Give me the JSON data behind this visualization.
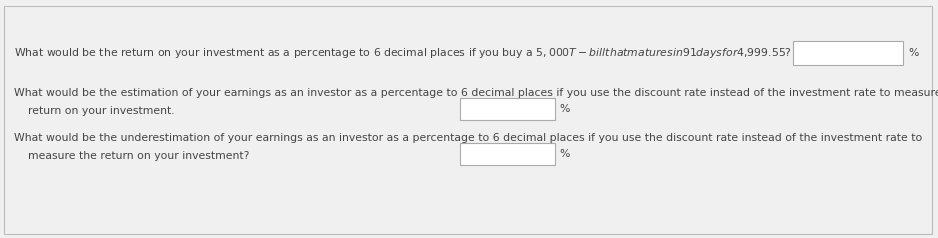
{
  "background_color": "#f0f0f0",
  "border_color": "#bbbbbb",
  "text_color": "#444444",
  "box_color": "#ffffff",
  "box_border_color": "#aaaaaa",
  "font_size": 7.8,
  "line1": "What would be the return on your investment as a percentage to 6 decimal places if you buy a $5,000 T-bill that matures in 91 days for $4,999.55?",
  "line2a": "What would be the estimation of your earnings as an investor as a percentage to 6 decimal places if you use the discount rate instead of the investment rate to measure the",
  "line2b": "    return on your investment.",
  "line3a": "What would be the underestimation of your earnings as an investor as a percentage to 6 decimal places if you use the discount rate instead of the investment rate to",
  "line3b": "    measure the return on your investment?",
  "percent_label": "%"
}
